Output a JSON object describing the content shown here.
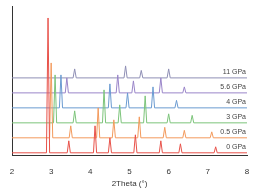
{
  "chart_data": {
    "type": "line",
    "x_label": "2Theta (°)",
    "xlim": [
      2,
      8
    ],
    "xticks": [
      2,
      3,
      4,
      5,
      6,
      7,
      8
    ],
    "ylim": [
      0,
      100
    ],
    "grid": false,
    "tick_labels": "x",
    "series": [
      {
        "name": "0 GPa",
        "color": "#e8524a",
        "x": [
          2.0,
          2.88,
          2.92,
          2.96,
          3.41,
          3.45,
          3.49,
          4.08,
          4.12,
          4.16,
          4.46,
          4.5,
          4.54,
          5.11,
          5.15,
          5.19,
          5.76,
          5.8,
          5.84,
          6.26,
          6.3,
          6.34,
          7.16,
          7.2,
          7.24,
          8.0
        ],
        "values": [
          2,
          2,
          92,
          2,
          2,
          10,
          2,
          2,
          20,
          2,
          2,
          12,
          2,
          2,
          14,
          2,
          2,
          10,
          2,
          2,
          8,
          2,
          2,
          6,
          2,
          2
        ]
      },
      {
        "name": "0.5 GPa",
        "color": "#f39a5c",
        "x": [
          2.0,
          2.96,
          3.0,
          3.04,
          3.46,
          3.5,
          3.54,
          4.16,
          4.2,
          4.24,
          4.56,
          4.6,
          4.64,
          5.21,
          5.25,
          5.29,
          5.86,
          5.9,
          5.94,
          6.36,
          6.4,
          6.44,
          7.06,
          7.1,
          7.14,
          8.0
        ],
        "values": [
          12,
          12,
          62,
          12,
          12,
          20,
          12,
          12,
          32,
          12,
          12,
          24,
          12,
          12,
          26,
          12,
          12,
          19,
          12,
          12,
          17,
          12,
          12,
          16,
          12,
          12
        ]
      },
      {
        "name": "3 GPa",
        "color": "#7cc47a",
        "x": [
          2.0,
          3.06,
          3.1,
          3.14,
          3.56,
          3.6,
          3.64,
          4.31,
          4.35,
          4.39,
          4.71,
          4.75,
          4.79,
          5.36,
          5.4,
          5.44,
          5.96,
          6.0,
          6.04,
          6.56,
          6.6,
          6.64,
          8.0
        ],
        "values": [
          22,
          22,
          54,
          22,
          22,
          30,
          22,
          22,
          44,
          22,
          22,
          34,
          22,
          22,
          40,
          22,
          22,
          28,
          22,
          22,
          27,
          22,
          22
        ]
      },
      {
        "name": "4 GPa",
        "color": "#6b9bd1",
        "x": [
          2.0,
          3.21,
          3.25,
          3.29,
          4.46,
          4.5,
          4.54,
          4.91,
          4.95,
          4.99,
          5.56,
          5.6,
          5.64,
          6.16,
          6.2,
          6.24,
          8.0
        ],
        "values": [
          32,
          32,
          54,
          32,
          32,
          48,
          32,
          32,
          42,
          32,
          32,
          46,
          32,
          32,
          37,
          32,
          32
        ]
      },
      {
        "name": "5.6 GPa",
        "color": "#9a85c9",
        "x": [
          2.0,
          3.36,
          3.4,
          3.44,
          4.66,
          4.7,
          4.74,
          5.06,
          5.1,
          5.14,
          5.76,
          5.8,
          5.84,
          6.36,
          6.4,
          6.44,
          8.0
        ],
        "values": [
          42,
          42,
          52,
          42,
          42,
          54,
          42,
          42,
          50,
          42,
          42,
          52,
          42,
          42,
          46,
          42,
          42
        ]
      },
      {
        "name": "11 GPa",
        "color": "#8f8fb5",
        "x": [
          2.0,
          3.56,
          3.6,
          3.64,
          4.86,
          4.9,
          4.94,
          5.26,
          5.3,
          5.34,
          5.96,
          6.0,
          6.04,
          8.0
        ],
        "values": [
          52,
          52,
          58,
          52,
          52,
          60,
          52,
          52,
          57,
          52,
          52,
          58,
          52,
          52
        ]
      }
    ]
  }
}
